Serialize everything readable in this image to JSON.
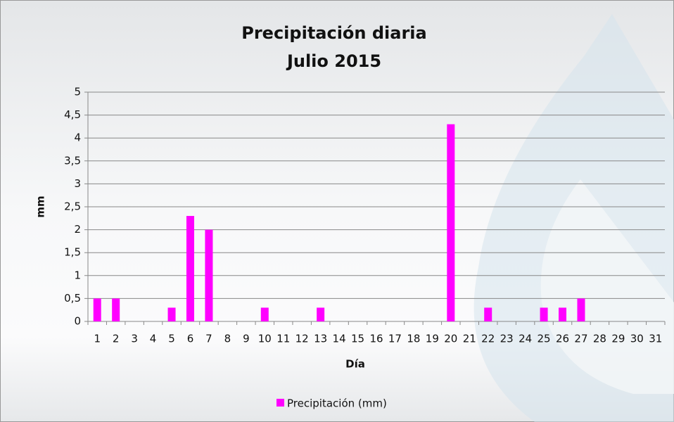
{
  "chart_data": {
    "type": "bar",
    "title": "Precipitación diaria",
    "subtitle": "Julio 2015",
    "x_label": "Día",
    "y_label": "mm",
    "categories": [
      "1",
      "2",
      "3",
      "4",
      "5",
      "6",
      "7",
      "8",
      "9",
      "10",
      "11",
      "12",
      "13",
      "14",
      "15",
      "16",
      "17",
      "18",
      "19",
      "20",
      "21",
      "22",
      "23",
      "24",
      "25",
      "26",
      "27",
      "28",
      "29",
      "30",
      "31"
    ],
    "series": [
      {
        "name": "Precipitación (mm)",
        "color": "#ff00ff",
        "values": [
          0.5,
          0.5,
          0,
          0,
          0.3,
          2.3,
          2,
          0,
          0,
          0.3,
          0,
          0,
          0.3,
          0,
          0,
          0,
          0,
          0,
          0,
          4.3,
          0,
          0.3,
          0,
          0,
          0.3,
          0.3,
          0.5,
          0,
          0,
          0,
          0
        ]
      }
    ],
    "ylim": [
      0,
      5
    ],
    "yticks": [
      0,
      {
        "value": 0.5,
        "label": "0,5"
      },
      1,
      {
        "value": 1.5,
        "label": "1,5"
      },
      2,
      {
        "value": 2.5,
        "label": "2,5"
      },
      3,
      {
        "value": 3.5,
        "label": "3,5"
      },
      4,
      {
        "value": 4.5,
        "label": "4,5"
      },
      5
    ],
    "grid": true,
    "legend": "bottom"
  }
}
